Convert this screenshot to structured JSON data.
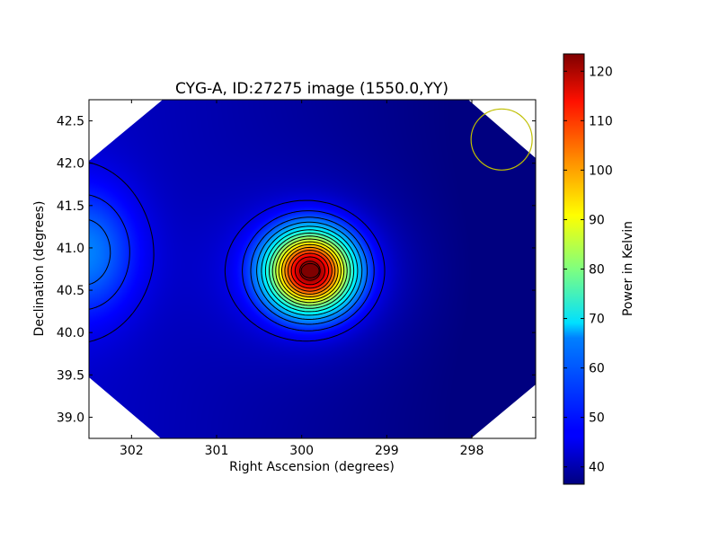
{
  "chart_data": {
    "type": "heatmap",
    "title": "CYG-A, ID:27275 image (1550.0,YY)",
    "xlabel": "Right Ascension (degrees)",
    "ylabel": "Declination (degrees)",
    "xlim": [
      302.5,
      297.25
    ],
    "ylim": [
      38.75,
      42.75
    ],
    "x_inverted": true,
    "xticks": [
      302,
      301,
      300,
      299,
      298
    ],
    "yticks": [
      39.0,
      39.5,
      40.0,
      40.5,
      41.0,
      41.5,
      42.0,
      42.5
    ],
    "xtick_labels": [
      "302",
      "301",
      "300",
      "299",
      "298"
    ],
    "ytick_labels": [
      "39.0",
      "39.5",
      "40.0",
      "40.5",
      "41.0",
      "41.5",
      "42.0",
      "42.5"
    ],
    "colorbar": {
      "label": "Power in Kelvin",
      "range": [
        36.5,
        123.5
      ],
      "ticks": [
        40,
        50,
        60,
        70,
        80,
        90,
        100,
        110,
        120
      ],
      "tick_labels": [
        "40",
        "50",
        "60",
        "70",
        "80",
        "90",
        "100",
        "110",
        "120"
      ],
      "colormap": "jet"
    },
    "peak": {
      "ra": 299.9,
      "dec": 40.73,
      "value": 123
    },
    "secondary_source": {
      "ra": 302.55,
      "dec": 40.95,
      "value": 58
    },
    "background_level": 42,
    "contour_levels": [
      45,
      50,
      55,
      60,
      65,
      70,
      75,
      80,
      85,
      90,
      95,
      100,
      105,
      110,
      115,
      120
    ],
    "beam_circle": {
      "ra": 297.65,
      "dec": 42.28,
      "color": "#bfbf00"
    },
    "colors": {
      "contour": "#000000",
      "mask": "#ffffff"
    }
  }
}
